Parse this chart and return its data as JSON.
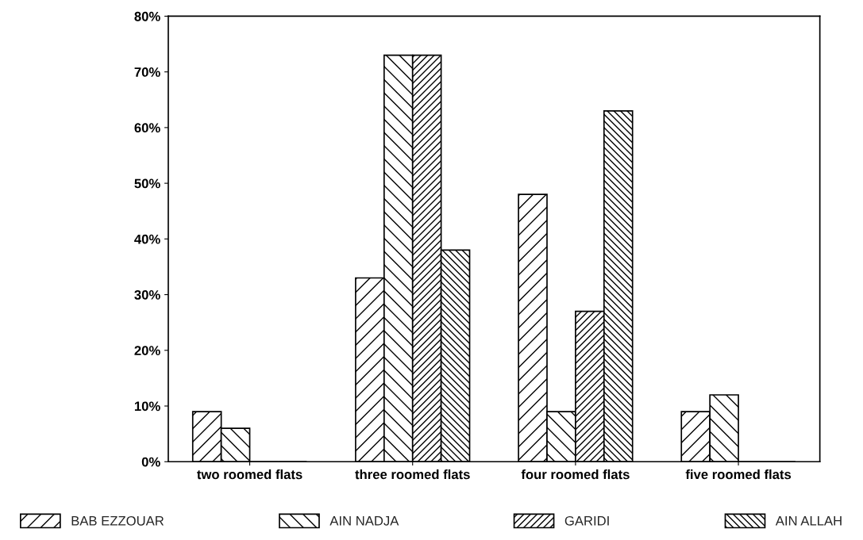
{
  "chart_data": {
    "type": "bar",
    "categories": [
      "two roomed flats",
      "three roomed flats",
      "four roomed flats",
      "five roomed flats"
    ],
    "series": [
      {
        "name": "BAB EZZOUAR",
        "color": "#000000",
        "values": [
          9,
          33,
          48,
          9
        ]
      },
      {
        "name": "AIN NADJA",
        "color": "#000000",
        "values": [
          6,
          73,
          9,
          12
        ]
      },
      {
        "name": "GARIDI",
        "color": "#000000",
        "values": [
          0,
          73,
          27,
          0
        ]
      },
      {
        "name": "AIN ALLAH",
        "color": "#000000",
        "values": [
          0,
          38,
          63,
          0
        ]
      }
    ],
    "ylim": [
      0,
      80
    ],
    "yticks": [
      {
        "value": 0,
        "label": "0%"
      },
      {
        "value": 10,
        "label": "10%"
      },
      {
        "value": 20,
        "label": "20%"
      },
      {
        "value": 30,
        "label": "30%"
      },
      {
        "value": 40,
        "label": "40%"
      },
      {
        "value": 50,
        "label": "50%"
      },
      {
        "value": 60,
        "label": "60%"
      },
      {
        "value": 70,
        "label": "70%"
      },
      {
        "value": 80,
        "label": "80%"
      }
    ],
    "grid": false,
    "legend": "bottom"
  }
}
